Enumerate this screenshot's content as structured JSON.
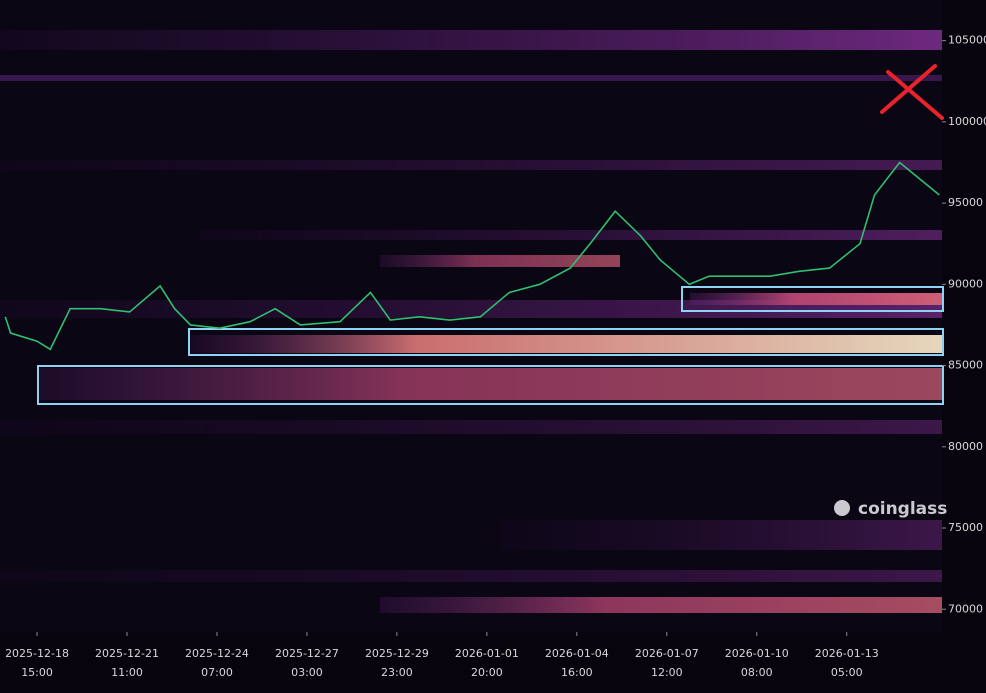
{
  "chart_data": {
    "type": "line",
    "watermark": "coinglass",
    "x": [
      -24,
      -20,
      0,
      10,
      25,
      48,
      70,
      93,
      104,
      116,
      138,
      161,
      180,
      199,
      229,
      252,
      267,
      289,
      312,
      335,
      357,
      380,
      403,
      418,
      437,
      456,
      471,
      493,
      508,
      531,
      554,
      576,
      599,
      622,
      633,
      652,
      667,
      682
    ],
    "series": [
      {
        "color": "#2fbf71",
        "values": [
          88000,
          87000,
          86500,
          86000,
          88500,
          88500,
          88300,
          89900,
          88500,
          87500,
          87300,
          87700,
          88500,
          87500,
          87700,
          89500,
          87800,
          88000,
          87800,
          88000,
          89500,
          90000,
          91000,
          92500,
          94500,
          93000,
          91500,
          90000,
          90500,
          90500,
          90500,
          90800,
          91000,
          92500,
          95500,
          97500,
          96500,
          95500
        ]
      }
    ],
    "xlim": [
      -28,
      684
    ],
    "xticks": [
      {
        "value": 0,
        "label": "2025-12-18"
      },
      {
        "value": 68,
        "label": "2025-12-21"
      },
      {
        "value": 136,
        "label": "2025-12-24"
      },
      {
        "value": 204,
        "label": "2025-12-27"
      },
      {
        "value": 272,
        "label": "2025-12-29"
      },
      {
        "value": 340,
        "label": "2026-01-01"
      },
      {
        "value": 408,
        "label": "2026-01-04"
      },
      {
        "value": 476,
        "label": "2026-01-07"
      },
      {
        "value": 544,
        "label": "2026-01-10"
      },
      {
        "value": 612,
        "label": "2026-01-13"
      }
    ],
    "xtick_sublabels": [
      "15:00",
      "11:00",
      "07:00",
      "03:00",
      "23:00",
      "20:00",
      "16:00",
      "12:00",
      "08:00",
      "05:00"
    ],
    "ylim": [
      68600,
      107500
    ],
    "yticks": [
      70000,
      75000,
      80000,
      85000,
      90000,
      95000,
      100000,
      105000
    ],
    "grid": false
  }
}
